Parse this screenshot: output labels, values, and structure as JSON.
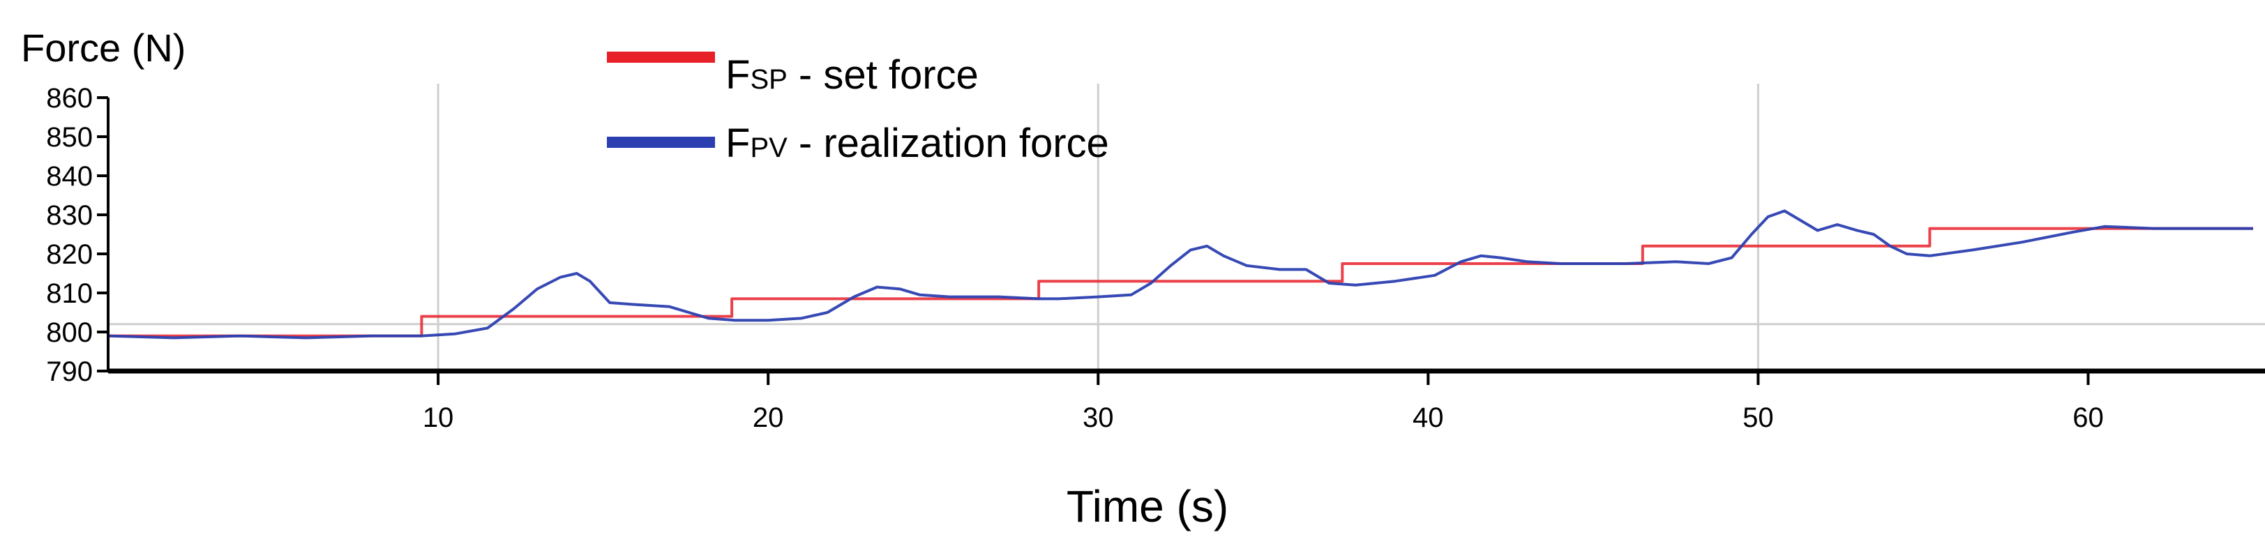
{
  "chart_data": {
    "type": "line",
    "ylabel": "Force (N)",
    "xlabel": "Time (s)",
    "xlim": [
      0,
      65
    ],
    "ylim": [
      790,
      860
    ],
    "xticks": [
      10,
      20,
      30,
      40,
      50,
      60
    ],
    "yticks": [
      790,
      800,
      810,
      820,
      830,
      840,
      850,
      860
    ],
    "grid_x": [
      10,
      30,
      50
    ],
    "grid_y": [
      802
    ],
    "legend_position": "top-center",
    "colors": {
      "set": "#e8202a",
      "realization": "#2b3fb0"
    },
    "series": [
      {
        "key": "set",
        "name_main": "F",
        "name_sub": "SP",
        "name_rest": " - set force",
        "x": [
          0,
          9.5,
          9.5,
          18.9,
          18.9,
          28.2,
          28.2,
          37.4,
          37.4,
          46.5,
          46.5,
          55.2,
          55.2,
          65
        ],
        "y": [
          799,
          799,
          804,
          804,
          808.5,
          808.5,
          813,
          813,
          817.5,
          817.5,
          822,
          822,
          826.5,
          826.5
        ]
      },
      {
        "key": "realization",
        "name_main": "F",
        "name_sub": "PV",
        "name_rest": " - realization force",
        "x": [
          0,
          2,
          4,
          6,
          8,
          9.5,
          10.5,
          11.5,
          12.3,
          13,
          13.7,
          14.2,
          14.6,
          15.2,
          16,
          17,
          17.6,
          18.2,
          19,
          20,
          21,
          21.8,
          22.6,
          23.3,
          24,
          24.6,
          25.5,
          27,
          28.2,
          28.8,
          30,
          31,
          31.6,
          32.2,
          32.8,
          33.3,
          33.8,
          34.5,
          35.5,
          36.3,
          37,
          37.8,
          39,
          40.2,
          41,
          41.6,
          42.2,
          43,
          44,
          46,
          47.5,
          48.5,
          49.2,
          49.8,
          50.3,
          50.8,
          51.3,
          51.8,
          52.4,
          53,
          53.5,
          54,
          54.5,
          55.2,
          56.5,
          58,
          59.5,
          60.5,
          62,
          65
        ],
        "y": [
          799,
          798.5,
          799,
          798.5,
          799,
          799,
          799.5,
          801,
          806,
          811,
          814,
          815,
          813,
          807.5,
          807,
          806.5,
          805,
          803.5,
          803,
          803,
          803.5,
          805,
          809,
          811.5,
          811,
          809.5,
          809,
          809,
          808.5,
          808.5,
          809,
          809.5,
          812.5,
          817,
          821,
          822,
          819.5,
          817,
          816,
          816,
          812.5,
          812,
          813,
          814.5,
          818,
          819.5,
          819,
          818,
          817.5,
          817.5,
          818,
          817.5,
          819,
          825,
          829.5,
          831,
          828.5,
          826,
          827.5,
          826,
          825,
          822,
          820,
          819.5,
          821,
          823,
          825.5,
          827,
          826.5,
          826.5
        ]
      }
    ]
  }
}
